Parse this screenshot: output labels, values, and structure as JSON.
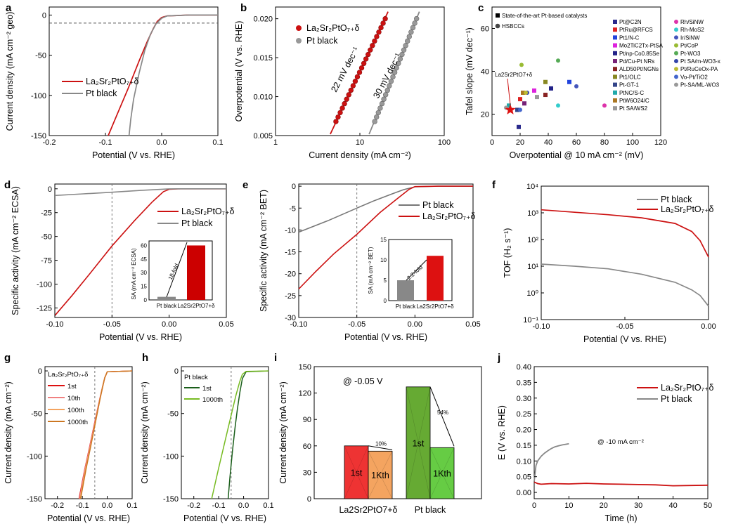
{
  "chart_data": [
    {
      "panel": "a",
      "type": "line",
      "xlabel": "Potential (V vs. RHE)",
      "ylabel": "Current density (mA cm⁻² geo)",
      "xlim": [
        -0.2,
        0.1
      ],
      "ylim": [
        -150,
        10
      ],
      "xticks": [
        "-0.2",
        "-0.1",
        "0.0",
        "0.1"
      ],
      "yticks": [
        "0",
        "-50",
        "-100",
        "-150"
      ],
      "reference_line_y": -10,
      "series": [
        {
          "name": "La2Sr2PtO7+δ",
          "color": "#cc1111",
          "x": [
            -0.095,
            -0.08,
            -0.06,
            -0.04,
            -0.025,
            -0.015,
            -0.008,
            0.0,
            0.01,
            0.05,
            0.1
          ],
          "y": [
            -150,
            -125,
            -92,
            -57,
            -32,
            -17,
            -8,
            -3,
            -1,
            0,
            0
          ]
        },
        {
          "name": "Pt black",
          "color": "#888888",
          "x": [
            -0.058,
            -0.055,
            -0.05,
            -0.04,
            -0.03,
            -0.02,
            -0.01,
            0.0,
            0.01,
            0.05,
            0.1
          ],
          "y": [
            -150,
            -130,
            -105,
            -72,
            -44,
            -24,
            -11,
            -4,
            -1,
            0,
            0
          ]
        }
      ]
    },
    {
      "panel": "b",
      "type": "scatter",
      "xlabel": "Current density (mA cm⁻²)",
      "ylabel": "Overpotential (V vs. RHE)",
      "xscale": "log",
      "xlim": [
        1,
        100
      ],
      "ylim": [
        0.005,
        0.0215
      ],
      "xticks": [
        "1",
        "10",
        "100"
      ],
      "yticks": [
        "0.005",
        "0.010",
        "0.015",
        "0.020"
      ],
      "annotations": [
        "22 mV dec⁻¹",
        "30 mV dec⁻¹"
      ],
      "series": [
        {
          "name": "La2Sr2PtO7+δ",
          "color": "#cc1111",
          "x_range": [
            5.2,
            20
          ],
          "y_range": [
            0.0068,
            0.02
          ]
        },
        {
          "name": "Pt black",
          "color": "#999999",
          "x_range": [
            15,
            47
          ],
          "y_range": [
            0.0068,
            0.02
          ]
        }
      ]
    },
    {
      "panel": "c",
      "type": "scatter",
      "xlabel": "Overpotential @ 10 mA cm⁻² (mV)",
      "ylabel": "Tafel slope (mV dec⁻¹)",
      "xlim": [
        0,
        120
      ],
      "ylim": [
        10,
        70
      ],
      "xticks": [
        "0",
        "20",
        "40",
        "60",
        "80",
        "100",
        "120"
      ],
      "yticks": [
        "20",
        "40",
        "60"
      ],
      "legend_title_squares": "State-of-the-art Pt-based catalysts",
      "legend_title_circles": "HSBCCs",
      "star_label": "La2Sr2PtO7+δ",
      "star_point": {
        "x": 13,
        "y": 22
      },
      "points_squares": [
        {
          "label": "Pt@C2N",
          "color": "#2a2a8c",
          "x": 19,
          "y": 14
        },
        {
          "label": "PtRu@RFCS",
          "color": "#dd2222",
          "x": 20,
          "y": 27
        },
        {
          "label": "Pt1/N-C",
          "color": "#2244dd",
          "x": 55,
          "y": 35
        },
        {
          "label": "Mo2TiC2Tx-PtSA",
          "color": "#dd22dd",
          "x": 30,
          "y": 31
        },
        {
          "label": "Pt/np-Co0.85Se",
          "color": "#222288",
          "x": 42,
          "y": 32
        },
        {
          "label": "Pd/Cu-Pt NRs",
          "color": "#772277",
          "x": 23,
          "y": 25
        },
        {
          "label": "ALD50Pt/NGNs",
          "color": "#882222",
          "x": 38,
          "y": 29
        },
        {
          "label": "Pt1/OLC",
          "color": "#888822",
          "x": 38,
          "y": 35
        },
        {
          "label": "Pt-GT-1",
          "color": "#334488",
          "x": 18,
          "y": 22
        },
        {
          "label": "PtNC/S-C",
          "color": "#22aaaa",
          "x": 12,
          "y": 24
        },
        {
          "label": "PtW6O24/C",
          "color": "#aa7722",
          "x": 22,
          "y": 30
        },
        {
          "label": "Pt SA/WS2",
          "color": "#999999",
          "x": 32,
          "y": 28
        }
      ],
      "points_circles": [
        {
          "label": "Rh/SiNW",
          "color": "#dd33aa",
          "x": 80,
          "y": 24
        },
        {
          "label": "Rh-MoS2",
          "color": "#33cccc",
          "x": 47,
          "y": 24
        },
        {
          "label": "Ir/SiNW",
          "color": "#4455bb",
          "x": 60,
          "y": 33
        },
        {
          "label": "Pt/CoP",
          "color": "#99bb33",
          "x": 21,
          "y": 43
        },
        {
          "label": "Pt-WO3",
          "color": "#55aa55",
          "x": 47,
          "y": 45
        },
        {
          "label": "Pt SA/m-WO3-x",
          "color": "#3344aa",
          "x": 25,
          "y": 30
        },
        {
          "label": "Pt/RuCeOx-PA",
          "color": "#bbbb33",
          "x": 24,
          "y": 30
        },
        {
          "label": "Vo-Pt/TiO2",
          "color": "#4466cc",
          "x": 20,
          "y": 22
        },
        {
          "label": "Pt-SA/ML-WO3",
          "color": "#999999",
          "x": 10,
          "y": 23
        }
      ]
    },
    {
      "panel": "d",
      "type": "line",
      "xlabel": "Potential (V vs. RHE)",
      "ylabel": "Specific activity (mA cm⁻² ECSA)",
      "xlim": [
        -0.1,
        0.05
      ],
      "ylim": [
        -135,
        5
      ],
      "xticks": [
        "-0.10",
        "-0.05",
        "0.00",
        "0.05"
      ],
      "yticks": [
        "0",
        "-25",
        "-50",
        "-75",
        "-100",
        "-125"
      ],
      "reference_line_x": -0.05,
      "series": [
        {
          "name": "La2Sr2PtO7+δ",
          "color": "#cc1111",
          "x": [
            -0.1,
            -0.085,
            -0.07,
            -0.05,
            -0.03,
            -0.015,
            -0.005,
            0.0,
            0.01,
            0.05
          ],
          "y": [
            -133,
            -112,
            -90,
            -60,
            -33,
            -14,
            -3,
            -0.5,
            0,
            0
          ]
        },
        {
          "name": "Pt black",
          "color": "#888888",
          "x": [
            -0.1,
            -0.075,
            -0.05,
            -0.025,
            0.0,
            0.01,
            0.05
          ],
          "y": [
            -7,
            -5.3,
            -3.6,
            -1.7,
            -0.1,
            0,
            0
          ]
        }
      ],
      "inset": {
        "type": "bar",
        "ylabel": "SA (mA cm⁻² ECSA)",
        "categories": [
          "Pt black",
          "La2Sr2PtO7+δ"
        ],
        "values": [
          3.4,
          60
        ],
        "ylim": [
          0,
          65
        ],
        "yticks": [
          "0",
          "15",
          "30",
          "45",
          "60"
        ],
        "annotation": "18-fold"
      }
    },
    {
      "panel": "e",
      "type": "line",
      "xlabel": "Potential (V vs. RHE)",
      "ylabel": "Specific activity (mA cm⁻² BET)",
      "xlim": [
        -0.1,
        0.05
      ],
      "ylim": [
        -30,
        0.5
      ],
      "xticks": [
        "-0.10",
        "-0.05",
        "0.00",
        "0.05"
      ],
      "yticks": [
        "0",
        "-5",
        "-10",
        "-15",
        "-20",
        "-25",
        "-30"
      ],
      "reference_line_x": -0.05,
      "series": [
        {
          "name": "Pt black",
          "color": "#777777",
          "x": [
            -0.1,
            -0.075,
            -0.05,
            -0.035,
            -0.02,
            -0.01,
            0.0,
            0.02,
            0.05
          ],
          "y": [
            -10.5,
            -7.9,
            -5.0,
            -3.3,
            -1.8,
            -0.8,
            -0.15,
            0,
            0
          ]
        },
        {
          "name": "La2Sr2PtO7+δ",
          "color": "#cc1111",
          "x": [
            -0.1,
            -0.085,
            -0.07,
            -0.05,
            -0.03,
            -0.015,
            -0.005,
            0.0,
            0.02,
            0.05
          ],
          "y": [
            -23.5,
            -19.4,
            -15.5,
            -11,
            -6,
            -2.8,
            -0.7,
            -0.1,
            0,
            0
          ]
        }
      ],
      "inset": {
        "type": "bar",
        "ylabel": "SA (mA cm⁻² BET)",
        "categories": [
          "Pt black",
          "La2Sr2PtO7+δ"
        ],
        "values": [
          5,
          11
        ],
        "ylim": [
          0,
          15
        ],
        "yticks": [
          "0",
          "5",
          "10",
          "15"
        ],
        "annotation": "2.2-fold"
      }
    },
    {
      "panel": "f",
      "type": "line",
      "xlabel": "Potential (V vs. RHE)",
      "ylabel": "TOF (H₂ s⁻¹)",
      "yscale": "log",
      "xlim": [
        -0.1,
        0.0
      ],
      "ylim": [
        0.1,
        10000
      ],
      "xticks": [
        "-0.10",
        "-0.05",
        "0.00"
      ],
      "yticks": [
        "10⁻¹",
        "10⁰",
        "10¹",
        "10²",
        "10³",
        "10⁴"
      ],
      "series": [
        {
          "name": "Pt black",
          "color": "#888888",
          "x": [
            -0.1,
            -0.08,
            -0.06,
            -0.04,
            -0.02,
            -0.01,
            -0.005,
            0.0
          ],
          "y": [
            12,
            10,
            8,
            5,
            2.5,
            1.3,
            0.8,
            0.32
          ]
        },
        {
          "name": "La2Sr2PtO7+δ",
          "color": "#cc1111",
          "x": [
            -0.1,
            -0.08,
            -0.06,
            -0.04,
            -0.02,
            -0.01,
            -0.005,
            0.0
          ],
          "y": [
            1300,
            1050,
            850,
            650,
            400,
            200,
            90,
            22
          ]
        }
      ]
    },
    {
      "panel": "g",
      "type": "line",
      "title": "La2Sr2PtO7+δ",
      "xlabel": "Potential (V vs. RHE)",
      "ylabel": "Current density (mA cm⁻²)",
      "xlim": [
        -0.25,
        0.1
      ],
      "ylim": [
        -150,
        5
      ],
      "xticks": [
        "-0.2",
        "-0.1",
        "0.0",
        "0.1"
      ],
      "yticks": [
        "0",
        "-50",
        "-100",
        "-150"
      ],
      "reference_line_x": -0.05,
      "series": [
        {
          "name": "1st",
          "color": "#dd1111",
          "x": [
            -0.113,
            -0.09,
            -0.07,
            -0.05,
            -0.03,
            -0.02,
            -0.01,
            0.0,
            0.1
          ],
          "y": [
            -150,
            -115,
            -88,
            -60,
            -33,
            -20,
            -8,
            -1,
            0
          ]
        },
        {
          "name": "10th",
          "color": "#f08080",
          "x": [
            -0.111,
            -0.089,
            -0.069,
            -0.049,
            -0.03,
            -0.02,
            -0.01,
            0.0,
            0.1
          ],
          "y": [
            -150,
            -115,
            -88,
            -60,
            -33,
            -20,
            -8,
            -1,
            0
          ]
        },
        {
          "name": "100th",
          "color": "#f4a460",
          "x": [
            -0.109,
            -0.087,
            -0.067,
            -0.048,
            -0.029,
            -0.02,
            -0.01,
            0.0,
            0.1
          ],
          "y": [
            -150,
            -115,
            -88,
            -60,
            -33,
            -20,
            -8,
            -1,
            0
          ]
        },
        {
          "name": "1000th",
          "color": "#cc7722",
          "x": [
            -0.107,
            -0.085,
            -0.066,
            -0.047,
            -0.029,
            -0.019,
            -0.01,
            0.0,
            0.1
          ],
          "y": [
            -150,
            -115,
            -88,
            -60,
            -33,
            -20,
            -8,
            -1,
            0
          ]
        }
      ]
    },
    {
      "panel": "h",
      "type": "line",
      "title": "Pt black",
      "xlabel": "Potential (V vs. RHE)",
      "ylabel": "Current density (mA cm⁻²)",
      "xlim": [
        -0.25,
        0.1
      ],
      "ylim": [
        -150,
        5
      ],
      "xticks": [
        "-0.2",
        "-0.1",
        "0.0",
        "0.1"
      ],
      "yticks": [
        "0",
        "-50",
        "-100",
        "-150"
      ],
      "reference_line_x": -0.05,
      "series": [
        {
          "name": "1st",
          "color": "#1a5e1a",
          "x": [
            -0.062,
            -0.055,
            -0.045,
            -0.035,
            -0.025,
            -0.015,
            -0.005,
            0.01,
            0.1
          ],
          "y": [
            -150,
            -125,
            -95,
            -68,
            -45,
            -25,
            -9,
            -1,
            0
          ]
        },
        {
          "name": "1000th",
          "color": "#77bb22",
          "x": [
            -0.128,
            -0.1,
            -0.075,
            -0.05,
            -0.03,
            -0.015,
            -0.005,
            0.01,
            0.1
          ],
          "y": [
            -150,
            -114,
            -83,
            -52,
            -28,
            -12,
            -4,
            -0.5,
            0
          ]
        }
      ]
    },
    {
      "panel": "i",
      "type": "bar",
      "ylabel": "Current density (mA cm⁻²)",
      "ylim": [
        0,
        150
      ],
      "yticks": [
        "0",
        "30",
        "60",
        "90",
        "120",
        "150"
      ],
      "categories": [
        "La2Sr2PtO7+δ",
        "Pt black"
      ],
      "annotation": "@ -0.05 V",
      "series": [
        {
          "name": "1st",
          "values": [
            60,
            127
          ],
          "colors": [
            "#ee3333",
            "#66aa33"
          ],
          "labels": [
            "1st",
            "1st"
          ]
        },
        {
          "name": "1Kth",
          "values": [
            54,
            58
          ],
          "colors": [
            "#f4a460",
            "#66cc44"
          ],
          "labels": [
            "1Kth",
            "1Kth"
          ]
        }
      ],
      "decrease_labels": [
        "10%",
        "54%"
      ]
    },
    {
      "panel": "j",
      "type": "line",
      "xlabel": "Time (h)",
      "ylabel": "E (V vs. RHE)",
      "xlim": [
        0,
        50
      ],
      "ylim": [
        -0.02,
        0.4
      ],
      "xticks": [
        "0",
        "10",
        "20",
        "30",
        "40",
        "50"
      ],
      "yticks": [
        "0.00",
        "0.05",
        "0.10",
        "0.15",
        "0.20",
        "0.25",
        "0.30",
        "0.35",
        "0.40"
      ],
      "annotation": "@ -10 mA cm⁻²",
      "series": [
        {
          "name": "La2Sr2PtO7+δ",
          "color": "#cc1111",
          "x": [
            0,
            1,
            2,
            5,
            10,
            15,
            20,
            25,
            30,
            35,
            40,
            45,
            50
          ],
          "y": [
            0.033,
            0.028,
            0.026,
            0.028,
            0.027,
            0.029,
            0.027,
            0.026,
            0.025,
            0.024,
            0.021,
            0.022,
            0.023
          ]
        },
        {
          "name": "Pt black",
          "color": "#888888",
          "x": [
            0,
            0.5,
            1,
            2,
            3,
            4,
            5,
            6,
            7,
            8,
            9,
            10
          ],
          "y": [
            0.035,
            0.085,
            0.1,
            0.115,
            0.125,
            0.133,
            0.14,
            0.145,
            0.148,
            0.151,
            0.153,
            0.155
          ]
        }
      ]
    }
  ],
  "panel_letters": [
    "a",
    "b",
    "c",
    "d",
    "e",
    "f",
    "g",
    "h",
    "i",
    "j"
  ],
  "legend_text": {
    "la": "La₂Sr₂PtO₇₊δ",
    "pt": "Pt black"
  }
}
